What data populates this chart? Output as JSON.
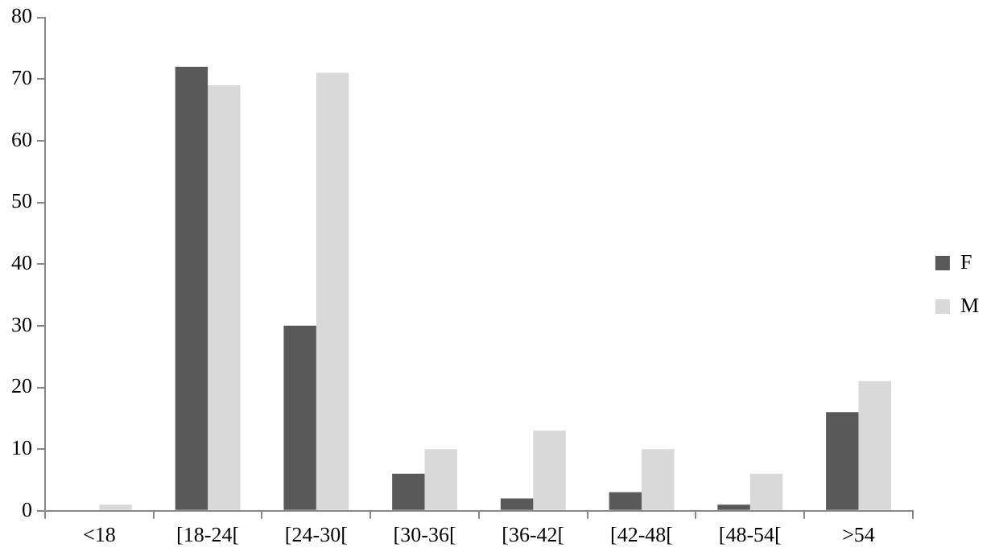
{
  "chart_data": {
    "type": "bar",
    "categories": [
      "<18",
      "[18-24[",
      "[24-30[",
      "[30-36[",
      "[36-42[",
      "[42-48[",
      "[48-54[",
      ">54"
    ],
    "series": [
      {
        "name": "F",
        "color": "#595959",
        "values": [
          0,
          72,
          30,
          6,
          2,
          3,
          1,
          16
        ]
      },
      {
        "name": "M",
        "color": "#d9d9d9",
        "values": [
          1,
          69,
          71,
          10,
          13,
          10,
          6,
          21
        ]
      }
    ],
    "ylim": [
      0,
      80
    ],
    "yticks": [
      0,
      10,
      20,
      30,
      40,
      50,
      60,
      70,
      80
    ],
    "grid": false,
    "legend": "right"
  }
}
